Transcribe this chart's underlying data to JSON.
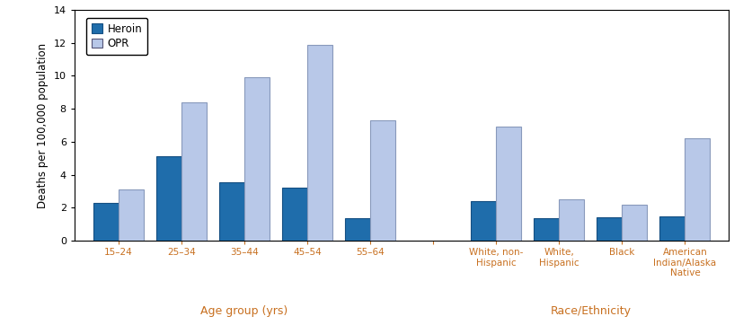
{
  "groups": [
    {
      "label": "15–24",
      "heroin": 2.3,
      "opr": 3.1
    },
    {
      "label": "25–34",
      "heroin": 5.1,
      "opr": 8.4
    },
    {
      "label": "35–44",
      "heroin": 3.55,
      "opr": 9.9
    },
    {
      "label": "45–54",
      "heroin": 3.2,
      "opr": 11.9
    },
    {
      "label": "55–64",
      "heroin": 1.35,
      "opr": 7.3
    },
    {
      "label": "",
      "heroin": null,
      "opr": null
    },
    {
      "label": "White, non-\nHispanic",
      "heroin": 2.4,
      "opr": 6.9
    },
    {
      "label": "White,\nHispanic",
      "heroin": 1.35,
      "opr": 2.5
    },
    {
      "label": "Black",
      "heroin": 1.4,
      "opr": 2.15
    },
    {
      "label": "American\nIndian/Alaska\nNative",
      "heroin": 1.45,
      "opr": 6.2
    }
  ],
  "heroin_color": "#1f6dab",
  "opr_color": "#b8c8e8",
  "heroin_edgecolor": "#154f82",
  "opr_edgecolor": "#8899bb",
  "ylabel": "Deaths per 100,000 population",
  "ylim": [
    0,
    14
  ],
  "yticks": [
    0,
    2,
    4,
    6,
    8,
    10,
    12,
    14
  ],
  "bar_width": 0.4,
  "age_xlabel": "Age group (yrs)",
  "race_xlabel": "Race/Ethnicity",
  "label_color": "#c87020",
  "tick_label_color": "#c87020",
  "age_indices": [
    0,
    1,
    2,
    3,
    4
  ],
  "race_indices": [
    6,
    7,
    8,
    9
  ],
  "figsize": [
    8.28,
    3.72
  ],
  "dpi": 100
}
